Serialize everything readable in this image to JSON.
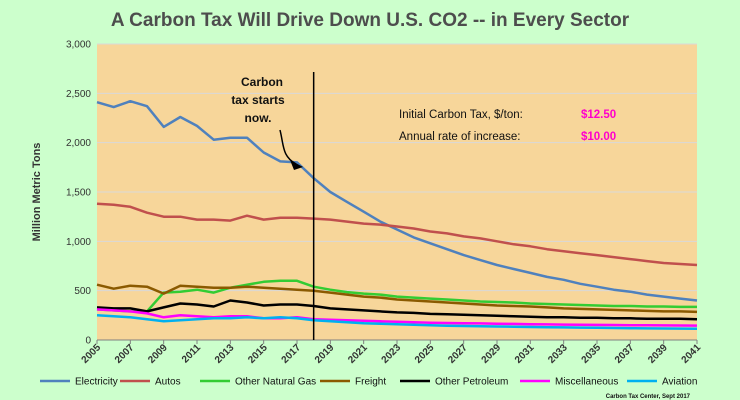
{
  "chart_data": {
    "type": "line",
    "title": "A Carbon Tax Will Drive Down U.S. CO2 -- in Every Sector",
    "ylabel": "Million Metric Tons",
    "xlabel": "",
    "ylim": [
      0,
      3000
    ],
    "yticks": [
      "0",
      "500",
      "1,000",
      "1,500",
      "2,000",
      "2,500",
      "3,000"
    ],
    "xlim": [
      2005,
      2041
    ],
    "xticks": [
      "2005",
      "2007",
      "2009",
      "2011",
      "2013",
      "2015",
      "2017",
      "2019",
      "2021",
      "2023",
      "2025",
      "2027",
      "2029",
      "2031",
      "2033",
      "2035",
      "2037",
      "2039",
      "2041"
    ],
    "grid": true,
    "legend": "bottom",
    "colors": {
      "plot_background": "#f7d69a",
      "page_background": "#ccffcc",
      "info_value_color": "#ff00cc"
    },
    "series": [
      {
        "name": "Electricity",
        "color": "#4f81bd",
        "x": [
          2005,
          2006,
          2007,
          2008,
          2009,
          2010,
          2011,
          2012,
          2013,
          2014,
          2015,
          2016,
          2017,
          2018,
          2019,
          2020,
          2021,
          2022,
          2023,
          2024,
          2025,
          2026,
          2027,
          2028,
          2029,
          2030,
          2031,
          2032,
          2033,
          2034,
          2035,
          2036,
          2037,
          2038,
          2039,
          2040,
          2041
        ],
        "values": [
          2410,
          2360,
          2420,
          2370,
          2160,
          2260,
          2170,
          2030,
          2050,
          2050,
          1900,
          1810,
          1800,
          1640,
          1500,
          1400,
          1300,
          1200,
          1120,
          1040,
          980,
          920,
          860,
          810,
          760,
          720,
          680,
          640,
          610,
          570,
          540,
          510,
          490,
          460,
          440,
          420,
          400
        ]
      },
      {
        "name": "Autos",
        "color": "#c0504d",
        "x": [
          2005,
          2006,
          2007,
          2008,
          2009,
          2010,
          2011,
          2012,
          2013,
          2014,
          2015,
          2016,
          2017,
          2018,
          2019,
          2020,
          2021,
          2022,
          2023,
          2024,
          2025,
          2026,
          2027,
          2028,
          2029,
          2030,
          2031,
          2032,
          2033,
          2034,
          2035,
          2036,
          2037,
          2038,
          2039,
          2040,
          2041
        ],
        "values": [
          1380,
          1370,
          1350,
          1290,
          1250,
          1250,
          1220,
          1220,
          1210,
          1260,
          1220,
          1240,
          1240,
          1230,
          1220,
          1200,
          1180,
          1170,
          1150,
          1130,
          1100,
          1080,
          1050,
          1030,
          1000,
          970,
          950,
          920,
          900,
          880,
          860,
          840,
          820,
          800,
          780,
          770,
          760
        ]
      },
      {
        "name": "Other Natural Gas",
        "color": "#33cc33",
        "x": [
          2005,
          2006,
          2007,
          2008,
          2009,
          2010,
          2011,
          2012,
          2013,
          2014,
          2015,
          2016,
          2017,
          2018,
          2019,
          2020,
          2021,
          2022,
          2023,
          2024,
          2025,
          2026,
          2027,
          2028,
          2029,
          2030,
          2031,
          2032,
          2033,
          2034,
          2035,
          2036,
          2037,
          2038,
          2039,
          2040,
          2041
        ],
        "values": [
          310,
          300,
          290,
          290,
          480,
          490,
          510,
          480,
          530,
          560,
          590,
          600,
          600,
          540,
          510,
          485,
          470,
          460,
          440,
          430,
          420,
          410,
          400,
          390,
          385,
          380,
          370,
          365,
          360,
          355,
          350,
          345,
          345,
          340,
          340,
          335,
          335
        ]
      },
      {
        "name": "Freight",
        "color": "#8b5a00",
        "x": [
          2005,
          2006,
          2007,
          2008,
          2009,
          2010,
          2011,
          2012,
          2013,
          2014,
          2015,
          2016,
          2017,
          2018,
          2019,
          2020,
          2021,
          2022,
          2023,
          2024,
          2025,
          2026,
          2027,
          2028,
          2029,
          2030,
          2031,
          2032,
          2033,
          2034,
          2035,
          2036,
          2037,
          2038,
          2039,
          2040,
          2041
        ],
        "values": [
          560,
          520,
          550,
          540,
          470,
          550,
          540,
          530,
          530,
          540,
          530,
          520,
          510,
          500,
          480,
          460,
          440,
          430,
          410,
          400,
          390,
          380,
          370,
          360,
          350,
          345,
          340,
          330,
          320,
          315,
          310,
          305,
          300,
          295,
          290,
          290,
          285
        ]
      },
      {
        "name": "Other Petroleum",
        "color": "#000000",
        "x": [
          2005,
          2006,
          2007,
          2008,
          2009,
          2010,
          2011,
          2012,
          2013,
          2014,
          2015,
          2016,
          2017,
          2018,
          2019,
          2020,
          2021,
          2022,
          2023,
          2024,
          2025,
          2026,
          2027,
          2028,
          2029,
          2030,
          2031,
          2032,
          2033,
          2034,
          2035,
          2036,
          2037,
          2038,
          2039,
          2040,
          2041
        ],
        "values": [
          330,
          320,
          320,
          290,
          330,
          370,
          360,
          340,
          400,
          380,
          350,
          360,
          360,
          345,
          320,
          310,
          300,
          290,
          280,
          275,
          265,
          260,
          255,
          250,
          245,
          240,
          235,
          230,
          230,
          225,
          225,
          220,
          220,
          215,
          215,
          215,
          210
        ]
      },
      {
        "name": "Miscellaneous",
        "color": "#ff00ff",
        "x": [
          2005,
          2006,
          2007,
          2008,
          2009,
          2010,
          2011,
          2012,
          2013,
          2014,
          2015,
          2016,
          2017,
          2018,
          2019,
          2020,
          2021,
          2022,
          2023,
          2024,
          2025,
          2026,
          2027,
          2028,
          2029,
          2030,
          2031,
          2032,
          2033,
          2034,
          2035,
          2036,
          2037,
          2038,
          2039,
          2040,
          2041
        ],
        "values": [
          310,
          300,
          290,
          270,
          230,
          250,
          240,
          230,
          240,
          240,
          220,
          220,
          230,
          210,
          205,
          200,
          195,
          190,
          185,
          180,
          175,
          172,
          170,
          168,
          165,
          163,
          160,
          158,
          156,
          155,
          153,
          152,
          150,
          149,
          148,
          147,
          146
        ]
      },
      {
        "name": "Aviation",
        "color": "#00b0f0",
        "x": [
          2005,
          2006,
          2007,
          2008,
          2009,
          2010,
          2011,
          2012,
          2013,
          2014,
          2015,
          2016,
          2017,
          2018,
          2019,
          2020,
          2021,
          2022,
          2023,
          2024,
          2025,
          2026,
          2027,
          2028,
          2029,
          2030,
          2031,
          2032,
          2033,
          2034,
          2035,
          2036,
          2037,
          2038,
          2039,
          2040,
          2041
        ],
        "values": [
          250,
          240,
          230,
          210,
          190,
          200,
          210,
          220,
          220,
          230,
          220,
          230,
          220,
          200,
          190,
          180,
          170,
          165,
          160,
          155,
          150,
          145,
          142,
          140,
          137,
          135,
          132,
          130,
          128,
          126,
          124,
          122,
          120,
          118,
          117,
          116,
          115
        ]
      }
    ],
    "annotations": {
      "carbon_tax": [
        "Carbon",
        "tax starts",
        "now."
      ],
      "tax_start_year": 2018
    },
    "info_box": {
      "initial_tax_label": "Initial Carbon Tax, $/ton:",
      "initial_tax_value": "$12.50",
      "increase_label": "Annual rate of increase:",
      "increase_value": "$10.00"
    },
    "credit": "Carbon Tax Center, Sept 2017"
  }
}
